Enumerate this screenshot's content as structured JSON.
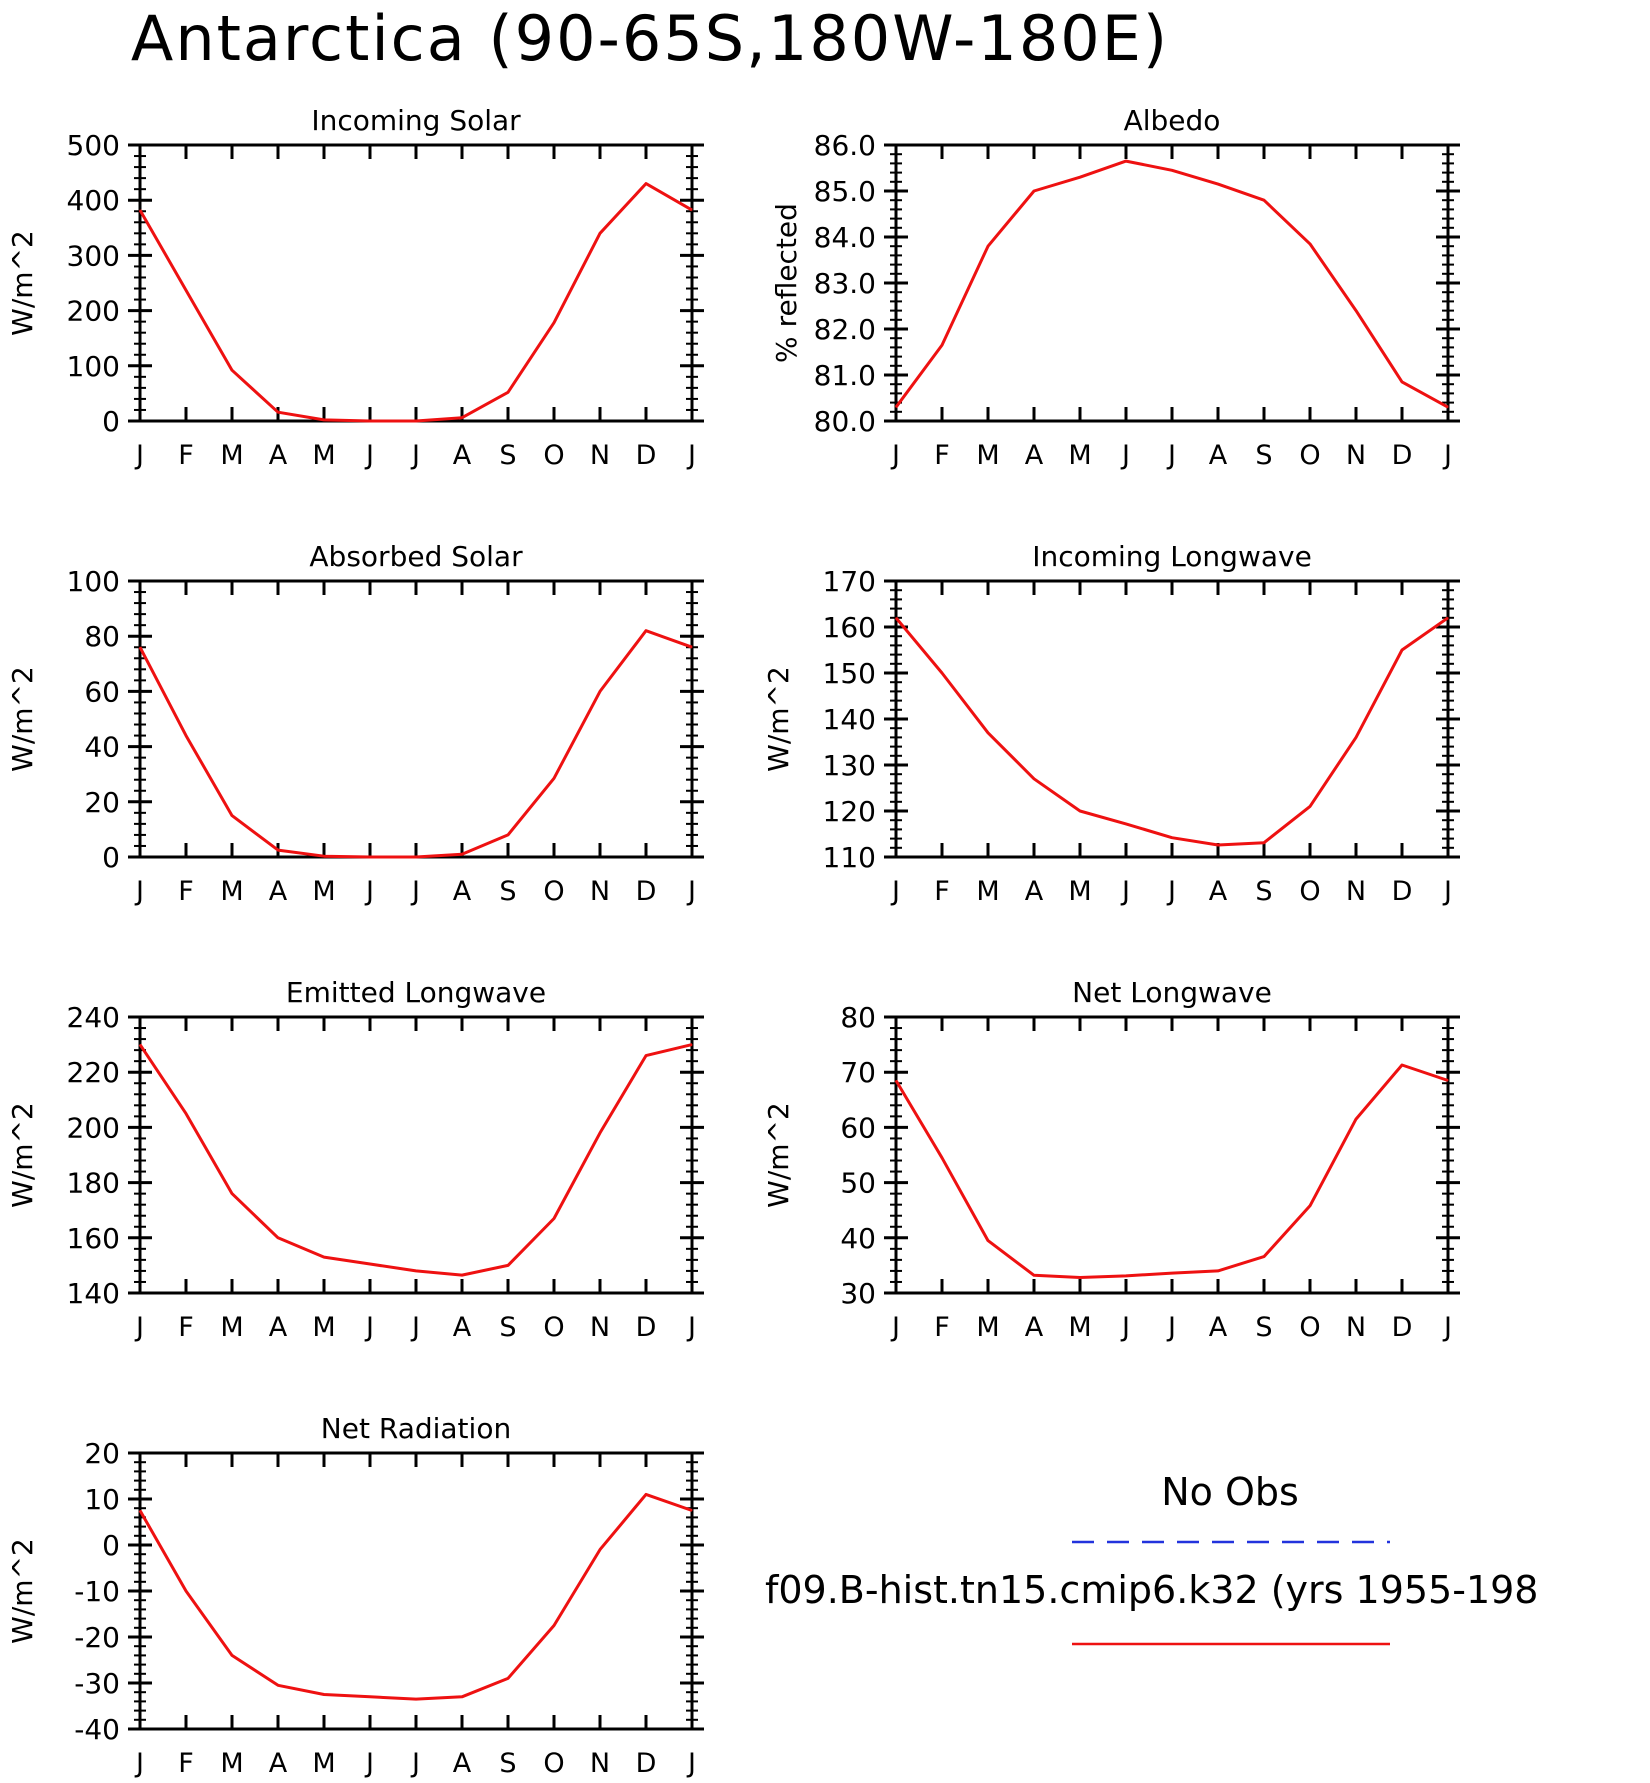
{
  "title": "Antarctica (90-65S,180W-180E)",
  "legend": {
    "obs_label": "No Obs",
    "obs_color": "#2233dd",
    "model_label": "f09.B-hist.tn15.cmip6.k32 (yrs 1955-198",
    "model_color": "#ee1111"
  },
  "chart_data": [
    {
      "type": "line",
      "title": "Incoming Solar",
      "ylabel": "W/m^2",
      "x": [
        "J",
        "F",
        "M",
        "A",
        "M",
        "J",
        "J",
        "A",
        "S",
        "O",
        "N",
        "D",
        "J"
      ],
      "ylim": [
        0,
        500
      ],
      "yticks": [
        "0",
        "100",
        "200",
        "300",
        "400",
        "500"
      ],
      "series": [
        {
          "values": [
            382,
            237,
            92,
            16,
            2,
            0,
            0,
            6,
            52,
            178,
            340,
            430,
            382
          ]
        }
      ]
    },
    {
      "type": "line",
      "title": "Albedo",
      "ylabel": "% reflected",
      "x": [
        "J",
        "F",
        "M",
        "A",
        "M",
        "J",
        "J",
        "A",
        "S",
        "O",
        "N",
        "D",
        "J"
      ],
      "ylim": [
        80.0,
        86.0
      ],
      "yticks": [
        "80.0",
        "81.0",
        "82.0",
        "83.0",
        "84.0",
        "85.0",
        "86.0"
      ],
      "series": [
        {
          "values": [
            80.3,
            81.65,
            83.8,
            85.0,
            85.3,
            85.65,
            85.45,
            85.15,
            84.8,
            83.85,
            82.4,
            80.85,
            80.3
          ]
        }
      ]
    },
    {
      "type": "line",
      "title": "Absorbed Solar",
      "ylabel": "W/m^2",
      "x": [
        "J",
        "F",
        "M",
        "A",
        "M",
        "J",
        "J",
        "A",
        "S",
        "O",
        "N",
        "D",
        "J"
      ],
      "ylim": [
        0,
        100
      ],
      "yticks": [
        "0",
        "20",
        "40",
        "60",
        "80",
        "100"
      ],
      "series": [
        {
          "values": [
            76,
            44,
            15,
            2.5,
            0.3,
            0,
            0,
            1,
            8,
            28.5,
            60,
            82,
            76
          ]
        }
      ]
    },
    {
      "type": "line",
      "title": "Incoming Longwave",
      "ylabel": "W/m^2",
      "x": [
        "J",
        "F",
        "M",
        "A",
        "M",
        "J",
        "J",
        "A",
        "S",
        "O",
        "N",
        "D",
        "J"
      ],
      "ylim": [
        110,
        170
      ],
      "yticks": [
        "110",
        "120",
        "130",
        "140",
        "150",
        "160",
        "170"
      ],
      "series": [
        {
          "values": [
            162,
            150,
            137,
            127,
            120,
            117.2,
            114.2,
            112.6,
            113.1,
            121,
            136,
            155,
            162
          ]
        }
      ]
    },
    {
      "type": "line",
      "title": "Emitted Longwave",
      "ylabel": "W/m^2",
      "x": [
        "J",
        "F",
        "M",
        "A",
        "M",
        "J",
        "J",
        "A",
        "S",
        "O",
        "N",
        "D",
        "J"
      ],
      "ylim": [
        140,
        240
      ],
      "yticks": [
        "140",
        "160",
        "180",
        "200",
        "220",
        "240"
      ],
      "series": [
        {
          "values": [
            230,
            205,
            176,
            160,
            153,
            150.5,
            148,
            146.5,
            150,
            167,
            198,
            226,
            230
          ]
        }
      ]
    },
    {
      "type": "line",
      "title": "Net Longwave",
      "ylabel": "W/m^2",
      "x": [
        "J",
        "F",
        "M",
        "A",
        "M",
        "J",
        "J",
        "A",
        "S",
        "O",
        "N",
        "D",
        "J"
      ],
      "ylim": [
        30,
        80
      ],
      "yticks": [
        "30",
        "40",
        "50",
        "60",
        "70",
        "80"
      ],
      "series": [
        {
          "values": [
            68.5,
            54.5,
            39.5,
            33.2,
            32.8,
            33.1,
            33.6,
            34.0,
            36.6,
            45.8,
            61.5,
            71.3,
            68.5
          ]
        }
      ]
    },
    {
      "type": "line",
      "title": "Net Radiation",
      "ylabel": "W/m^2",
      "x": [
        "J",
        "F",
        "M",
        "A",
        "M",
        "J",
        "J",
        "A",
        "S",
        "O",
        "N",
        "D",
        "J"
      ],
      "ylim": [
        -40,
        20
      ],
      "yticks": [
        "-40",
        "-30",
        "-20",
        "-10",
        "0",
        "10",
        "20"
      ],
      "series": [
        {
          "values": [
            7.5,
            -10,
            -24,
            -30.5,
            -32.5,
            -33,
            -33.5,
            -33,
            -29,
            -17.5,
            -1,
            11,
            7.5
          ]
        }
      ]
    }
  ]
}
